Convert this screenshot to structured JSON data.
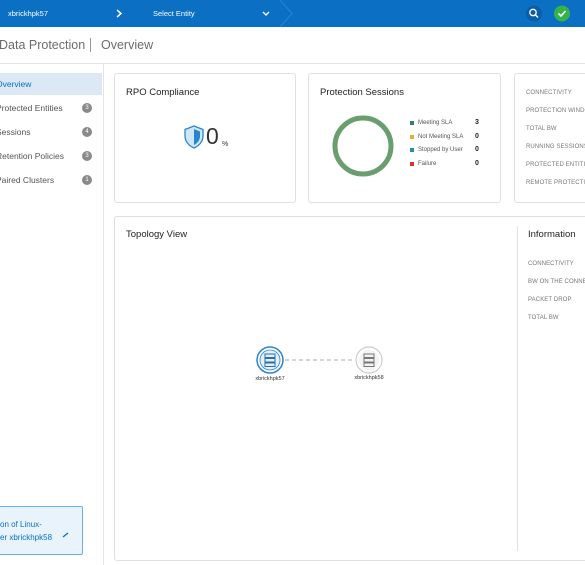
{
  "topbar": {
    "cluster": "xbrickhpk57",
    "entity": "Select Entity"
  },
  "header": {
    "title": "Data Protection",
    "subtitle": "Overview"
  },
  "sidebar": {
    "items": [
      {
        "label": "Overview"
      },
      {
        "label": "Protected Entities",
        "count": 3
      },
      {
        "label": "Sessions",
        "count": 4
      },
      {
        "label": "Retention Policies",
        "count": 3
      },
      {
        "label": "Paired Clusters",
        "count": 1
      }
    ]
  },
  "notice": {
    "lines": [
      "on of Linux-",
      "er xbrickhpk58"
    ]
  },
  "rpo": {
    "title": "RPO Compliance",
    "value": 0,
    "unit": "%"
  },
  "sessions": {
    "title": "Protection Sessions",
    "legend": [
      {
        "name": "Meeting SLA",
        "color": "#3e7a6a",
        "ring": "#6a9e6e",
        "value": 3
      },
      {
        "name": "Not Meeting SLA",
        "color": "#e8b02a",
        "ring": "#e8b02a",
        "value": 0
      },
      {
        "name": "Stopped by User",
        "color": "#2a8ab0",
        "ring": "#2a8ab0",
        "value": 0
      },
      {
        "name": "Failure",
        "color": "#d9342b",
        "ring": "#d9342b",
        "value": 0
      }
    ]
  },
  "summary": {
    "labels": [
      "CONNECTIVITY",
      "PROTECTION WINDOW",
      "TOTAL BW",
      "RUNNING SESSIONS",
      "PROTECTED ENTITIES",
      "REMOTE PROTECTION"
    ]
  },
  "topology": {
    "title": "Topology View",
    "nodes": [
      {
        "label": "xbrickhpk57"
      },
      {
        "label": "xbrickhpk58"
      }
    ]
  },
  "information": {
    "title": "Information",
    "labels": [
      "CONNECTIVITY",
      "BW ON THE CONNECTION",
      "PACKET DROP",
      "TOTAL BW"
    ]
  }
}
